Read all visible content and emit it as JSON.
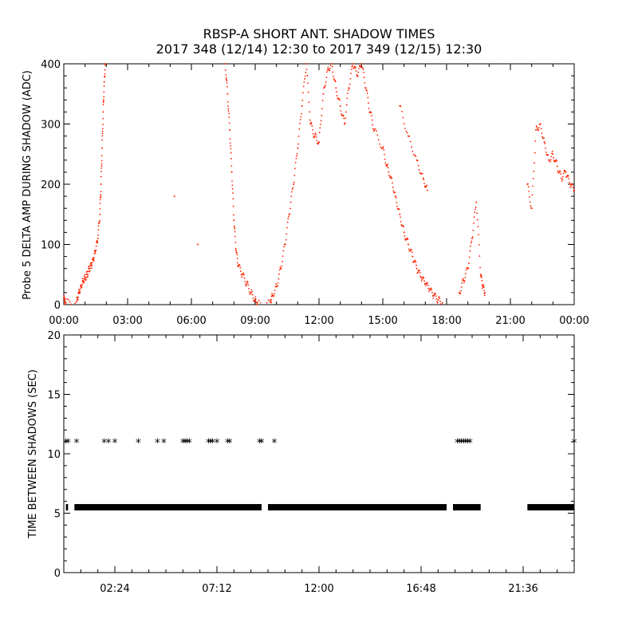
{
  "title": {
    "line1": "RBSP-A SHORT ANT. SHADOW TIMES",
    "line2": "2017 348 (12/14) 12:30 to 2017 349 (12/15) 12:30"
  },
  "colors": {
    "series_top": "#ff2200",
    "series_bottom": "#000000",
    "axes": "#000000"
  },
  "chart_data": [
    {
      "type": "scatter",
      "ylabel": "Probe 5 DELTA AMP DURING SHADOW (ADC)",
      "xlabel": "",
      "xlim": [
        0,
        24
      ],
      "ylim": [
        0,
        400
      ],
      "xtick_labels": [
        "00:00",
        "03:00",
        "06:00",
        "09:00",
        "12:00",
        "15:00",
        "18:00",
        "21:00",
        "00:00"
      ],
      "xticks_hours": [
        0,
        3,
        6,
        9,
        12,
        15,
        18,
        21,
        24
      ],
      "ytick_labels": [
        "0",
        "100",
        "200",
        "300",
        "400"
      ],
      "yticks": [
        0,
        100,
        200,
        300,
        400
      ],
      "series": [
        {
          "marker": "dot",
          "points": [
            [
              0.0,
              10
            ],
            [
              0.05,
              5
            ],
            [
              0.1,
              3
            ],
            [
              0.6,
              5
            ],
            [
              0.7,
              20
            ],
            [
              0.8,
              30
            ],
            [
              0.9,
              40
            ],
            [
              1.0,
              45
            ],
            [
              1.1,
              50
            ],
            [
              1.2,
              60
            ],
            [
              1.3,
              65
            ],
            [
              1.4,
              75
            ],
            [
              1.5,
              90
            ],
            [
              1.6,
              110
            ],
            [
              1.7,
              150
            ],
            [
              1.75,
              200
            ],
            [
              1.8,
              260
            ],
            [
              1.85,
              320
            ],
            [
              1.9,
              370
            ],
            [
              1.95,
              400
            ],
            [
              5.2,
              180
            ],
            [
              6.3,
              100
            ],
            [
              7.6,
              400
            ],
            [
              7.7,
              350
            ],
            [
              7.8,
              290
            ],
            [
              7.9,
              220
            ],
            [
              8.0,
              140
            ],
            [
              8.1,
              90
            ],
            [
              8.2,
              65
            ],
            [
              8.4,
              50
            ],
            [
              8.6,
              35
            ],
            [
              8.8,
              20
            ],
            [
              9.0,
              8
            ],
            [
              9.1,
              3
            ],
            [
              9.7,
              5
            ],
            [
              9.8,
              15
            ],
            [
              10.0,
              30
            ],
            [
              10.2,
              60
            ],
            [
              10.4,
              100
            ],
            [
              10.6,
              150
            ],
            [
              10.8,
              200
            ],
            [
              11.0,
              260
            ],
            [
              11.2,
              330
            ],
            [
              11.4,
              400
            ],
            [
              11.6,
              300
            ],
            [
              11.8,
              280
            ],
            [
              12.0,
              270
            ],
            [
              12.2,
              350
            ],
            [
              12.4,
              390
            ],
            [
              12.6,
              400
            ],
            [
              12.8,
              360
            ],
            [
              13.0,
              330
            ],
            [
              13.2,
              300
            ],
            [
              13.4,
              360
            ],
            [
              13.6,
              400
            ],
            [
              13.8,
              380
            ],
            [
              14.0,
              400
            ],
            [
              14.2,
              360
            ],
            [
              14.4,
              320
            ],
            [
              14.6,
              290
            ],
            [
              15.0,
              260
            ],
            [
              15.2,
              230
            ],
            [
              15.4,
              210
            ],
            [
              15.6,
              180
            ],
            [
              15.8,
              150
            ],
            [
              16.0,
              120
            ],
            [
              16.2,
              100
            ],
            [
              16.4,
              80
            ],
            [
              16.6,
              60
            ],
            [
              16.8,
              45
            ],
            [
              17.0,
              35
            ],
            [
              17.2,
              25
            ],
            [
              17.4,
              15
            ],
            [
              17.6,
              8
            ],
            [
              17.8,
              3
            ],
            [
              15.8,
              330
            ],
            [
              16.2,
              280
            ],
            [
              16.6,
              240
            ],
            [
              16.9,
              210
            ],
            [
              17.1,
              190
            ],
            [
              18.6,
              20
            ],
            [
              18.8,
              40
            ],
            [
              19.0,
              60
            ],
            [
              19.2,
              110
            ],
            [
              19.4,
              170
            ],
            [
              19.6,
              50
            ],
            [
              19.7,
              30
            ],
            [
              19.8,
              20
            ],
            [
              21.8,
              200
            ],
            [
              22.0,
              160
            ],
            [
              22.2,
              290
            ],
            [
              22.4,
              300
            ],
            [
              22.6,
              270
            ],
            [
              22.8,
              240
            ],
            [
              23.0,
              250
            ],
            [
              23.2,
              230
            ],
            [
              23.4,
              210
            ],
            [
              23.6,
              220
            ],
            [
              23.8,
              200
            ],
            [
              24.0,
              190
            ]
          ]
        }
      ]
    },
    {
      "type": "scatter",
      "ylabel": "TIME BETWEEN SHADOWS (SEC)",
      "xlabel": "",
      "xlim": [
        0,
        24
      ],
      "ylim": [
        0,
        20
      ],
      "xtick_labels": [
        "02:24",
        "07:12",
        "12:00",
        "16:48",
        "21:36"
      ],
      "xticks_hours": [
        2.4,
        7.2,
        12.0,
        16.8,
        21.6
      ],
      "ytick_labels": [
        "0",
        "5",
        "10",
        "15",
        "20"
      ],
      "yticks": [
        0,
        5,
        10,
        15,
        20
      ],
      "series": [
        {
          "marker": "asterisk",
          "segments_at_5_5": [
            [
              0.1,
              0.2
            ],
            [
              0.5,
              9.3
            ],
            [
              9.6,
              18.0
            ],
            [
              18.3,
              19.6
            ],
            [
              21.8,
              24.0
            ]
          ],
          "points_at_11": [
            0.1,
            0.2,
            0.6,
            1.9,
            2.1,
            2.4,
            3.5,
            4.4,
            4.7,
            5.6,
            5.7,
            5.8,
            5.9,
            6.8,
            6.9,
            7.0,
            7.2,
            7.7,
            7.8,
            9.2,
            9.3,
            9.9,
            18.5,
            18.6,
            18.7,
            18.8,
            18.9,
            19.0,
            19.1,
            24.0
          ]
        }
      ]
    }
  ]
}
